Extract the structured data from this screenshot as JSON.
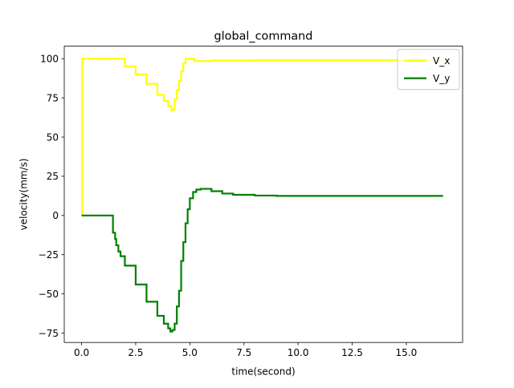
{
  "chart_data": {
    "type": "line",
    "title": "global_command",
    "xlabel": "time(second)",
    "ylabel": "velocity(mm/s)",
    "xlim": [
      -0.8,
      17.6
    ],
    "ylim": [
      -81,
      108
    ],
    "xticks": [
      0.0,
      2.5,
      5.0,
      7.5,
      10.0,
      12.5,
      15.0
    ],
    "yticks": [
      -75,
      -50,
      -25,
      0,
      25,
      50,
      75,
      100
    ],
    "xtick_labels": [
      "0.0",
      "2.5",
      "5.0",
      "7.5",
      "10.0",
      "12.5",
      "15.0"
    ],
    "ytick_labels": [
      "−75",
      "−50",
      "−25",
      "0",
      "25",
      "50",
      "75",
      "100"
    ],
    "grid": false,
    "legend_position": "top-right",
    "series": [
      {
        "name": "V_x",
        "color": "#ffff00",
        "x": [
          0.0,
          0.03,
          0.1,
          1.4,
          2.0,
          2.5,
          3.0,
          3.5,
          3.8,
          4.0,
          4.15,
          4.2,
          4.25,
          4.3,
          4.4,
          4.5,
          4.6,
          4.7,
          4.8,
          4.95,
          5.2,
          6.0,
          8.0,
          10.0,
          12.5,
          15.0,
          16.7
        ],
        "y": [
          0,
          100,
          100,
          100,
          95,
          90,
          84,
          77,
          73,
          70,
          67,
          67,
          68,
          74,
          80,
          86,
          92,
          97,
          100,
          100,
          98.5,
          98.8,
          99,
          99,
          99,
          99,
          99
        ],
        "step": true
      },
      {
        "name": "V_y",
        "color": "#008000",
        "x": [
          0.0,
          1.4,
          1.45,
          1.55,
          1.6,
          1.7,
          1.8,
          2.0,
          2.5,
          3.0,
          3.5,
          3.8,
          4.0,
          4.1,
          4.15,
          4.2,
          4.3,
          4.4,
          4.5,
          4.6,
          4.7,
          4.8,
          4.9,
          5.0,
          5.15,
          5.3,
          5.5,
          6.0,
          6.5,
          7.0,
          8.0,
          9.0,
          10.0,
          12.5,
          15.0,
          16.7
        ],
        "y": [
          0,
          0,
          -11,
          -15,
          -19,
          -23,
          -26,
          -32,
          -44,
          -55,
          -64,
          -69,
          -72,
          -74,
          -74,
          -73,
          -69,
          -58,
          -48,
          -29,
          -17,
          -5,
          4,
          11,
          15,
          16.5,
          17,
          15.5,
          14,
          13.2,
          12.7,
          12.5,
          12.5,
          12.5,
          12.5,
          12.5
        ],
        "step": true
      }
    ]
  }
}
